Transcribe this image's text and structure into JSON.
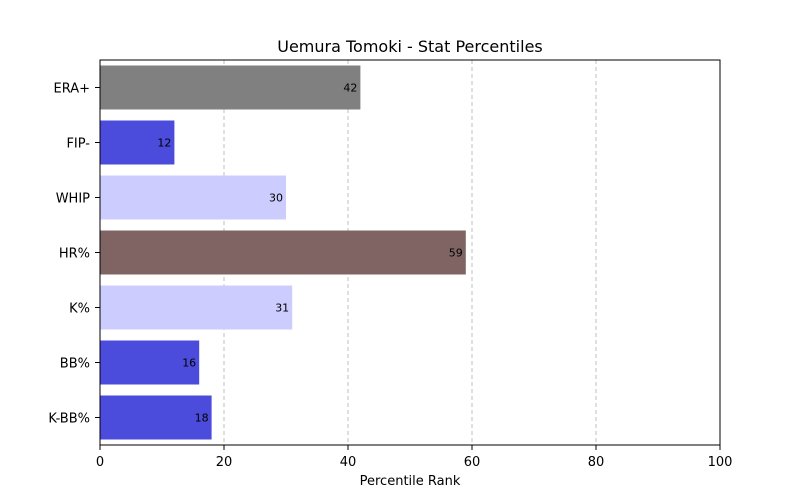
{
  "chart_data": {
    "type": "bar",
    "orientation": "horizontal",
    "title": "Uemura Tomoki - Stat Percentiles",
    "xlabel": "Percentile Rank",
    "ylabel": "",
    "xlim": [
      0,
      100
    ],
    "xticks": [
      0,
      20,
      40,
      60,
      80,
      100
    ],
    "grid": "x-dashed",
    "categories": [
      "ERA+",
      "FIP-",
      "WHIP",
      "HR%",
      "K%",
      "BB%",
      "K-BB%"
    ],
    "values": [
      42,
      12,
      30,
      59,
      31,
      16,
      18
    ],
    "colors": [
      "#808080",
      "#4b4bdc",
      "#ccccff",
      "#806464",
      "#ccccff",
      "#4b4bdc",
      "#4b4bdc"
    ]
  }
}
